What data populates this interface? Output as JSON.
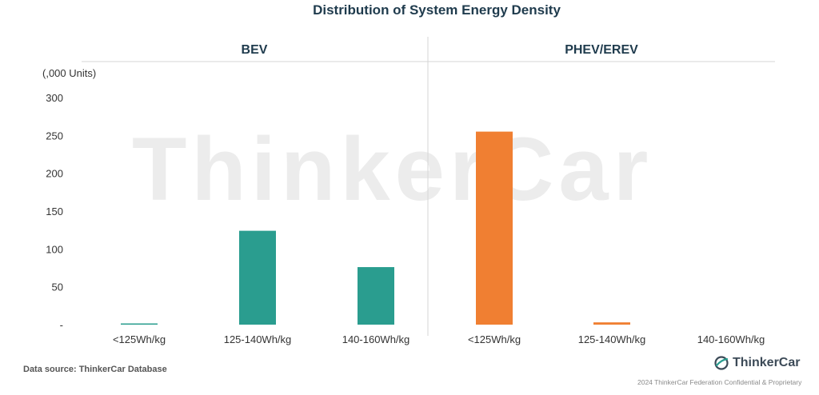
{
  "chart_data": {
    "type": "bar",
    "title": "Distribution of System Energy Density",
    "unit_label": "(,000 Units)",
    "ylim": [
      0,
      300
    ],
    "y_ticks": [
      "300",
      "250",
      "200",
      "150",
      "100",
      "50",
      "-"
    ],
    "grid": false,
    "legend": "none",
    "panels": [
      {
        "name": "BEV",
        "color": "#2a9d8f",
        "categories": [
          "<125Wh/kg",
          "125-140Wh/kg",
          "140-160Wh/kg"
        ],
        "values": [
          1,
          124,
          76
        ]
      },
      {
        "name": "PHEV/EREV",
        "color": "#f07f32",
        "categories": [
          "<125Wh/kg",
          "125-140Wh/kg",
          "140-160Wh/kg"
        ],
        "values": [
          255,
          3,
          0
        ]
      }
    ]
  },
  "watermark": "ThinkerCar",
  "footer": {
    "source": "Data source: ThinkerCar Database",
    "brand": "ThinkerCar",
    "copyright": "2024 ThinkerCar Federation Confidential & Proprietary"
  },
  "icons": {
    "brand": "thinkercar-logo-icon"
  }
}
